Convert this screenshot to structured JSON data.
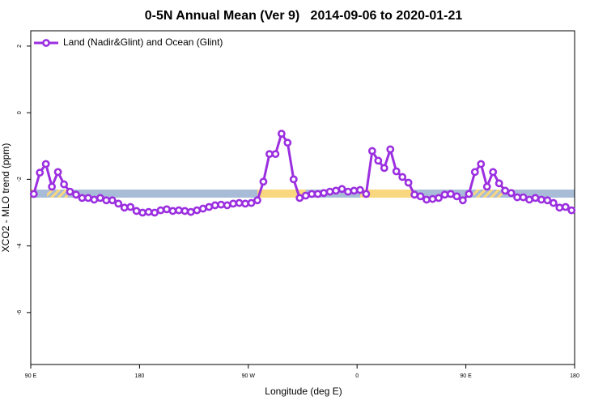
{
  "chart_data": {
    "type": "line",
    "title": "0-5N Annual Mean (Ver 9)   2014-09-06 to 2020-01-21",
    "x_label": "Longitude (deg E)",
    "y_label": "XCO2 - MLO trend (ppm)",
    "xlim": [
      90,
      540
    ],
    "xticks": [
      {
        "value": 90,
        "label": "90 E"
      },
      180,
      {
        "value": 270,
        "label": "90 W"
      },
      {
        "value": 360,
        "label": "0"
      },
      {
        "value": 450,
        "label": "90 E"
      },
      {
        "value": 540,
        "label": "180"
      }
    ],
    "ylim": [
      -7.56,
      2.46
    ],
    "yticks": [
      2,
      0,
      -2,
      -4,
      -6
    ],
    "legend": "top-left",
    "x": [
      92.5,
      97.5,
      102.5,
      107.5,
      112.5,
      117.5,
      122.5,
      127.5,
      132.5,
      137.5,
      142.5,
      147.5,
      152.5,
      157.5,
      162.5,
      167.5,
      172.5,
      177.5,
      182.5,
      187.5,
      192.5,
      197.5,
      202.5,
      207.5,
      212.5,
      217.5,
      222.5,
      227.5,
      232.5,
      237.5,
      242.5,
      247.5,
      252.5,
      257.5,
      262.5,
      267.5,
      272.5,
      277.5,
      282.5,
      287.5,
      292.5,
      297.5,
      302.5,
      307.5,
      312.5,
      317.5,
      322.5,
      327.5,
      332.5,
      337.5,
      342.5,
      347.5,
      352.5,
      357.5,
      362.5,
      367.5,
      372.5,
      377.5,
      382.5,
      387.5,
      392.5,
      397.5,
      402.5,
      407.5,
      412.5,
      417.5,
      422.5,
      427.5,
      432.5,
      437.5,
      442.5,
      447.5,
      452.5,
      457.5,
      462.5,
      467.5,
      472.5,
      477.5,
      482.5,
      487.5,
      492.5,
      497.5,
      502.5,
      507.5,
      512.5,
      517.5,
      522.5,
      527.5,
      532.5,
      537.5
    ],
    "series": [
      {
        "name": "Land (Nadir&Glint) and Ocean (Glint)",
        "color": "#9b2fe0",
        "values": [
          -2.44,
          -1.8,
          -1.54,
          -2.22,
          -1.78,
          -2.15,
          -2.37,
          -2.46,
          -2.56,
          -2.56,
          -2.61,
          -2.56,
          -2.63,
          -2.63,
          -2.73,
          -2.85,
          -2.83,
          -2.95,
          -3.0,
          -2.98,
          -3.0,
          -2.93,
          -2.9,
          -2.95,
          -2.93,
          -2.95,
          -2.98,
          -2.93,
          -2.88,
          -2.83,
          -2.78,
          -2.76,
          -2.78,
          -2.73,
          -2.71,
          -2.73,
          -2.71,
          -2.63,
          -2.07,
          -1.24,
          -1.24,
          -0.63,
          -0.9,
          -2.0,
          -2.56,
          -2.49,
          -2.44,
          -2.44,
          -2.41,
          -2.37,
          -2.34,
          -2.29,
          -2.37,
          -2.34,
          -2.32,
          -2.44,
          -1.15,
          -1.44,
          -1.66,
          -1.1,
          -1.76,
          -1.93,
          -2.1,
          -2.46,
          -2.51,
          -2.61,
          -2.59,
          -2.56,
          -2.46,
          -2.44,
          -2.51,
          -2.63,
          -2.44,
          -1.78,
          -1.54,
          -2.22,
          -1.78,
          -2.12,
          -2.34,
          -2.41,
          -2.54,
          -2.54,
          -2.61,
          -2.56,
          -2.61,
          -2.63,
          -2.71,
          -2.85,
          -2.83,
          -2.93
        ]
      }
    ]
  }
}
